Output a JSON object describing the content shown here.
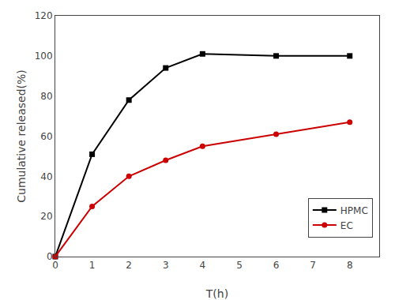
{
  "chart_data": {
    "type": "line",
    "xlabel": "T(h)",
    "ylabel": "Cumulative released(%)",
    "x": [
      0,
      1,
      2,
      3,
      4,
      6,
      8
    ],
    "series": [
      {
        "name": "HPMC",
        "color": "#000000",
        "marker": "square",
        "values": [
          0,
          51,
          78,
          94,
          101,
          100,
          100
        ]
      },
      {
        "name": "EC",
        "color": "#cc0000",
        "marker": "circle",
        "values": [
          0,
          25,
          40,
          48,
          55,
          61,
          67
        ]
      }
    ],
    "xlim": [
      0,
      8.8
    ],
    "ylim": [
      0,
      120
    ],
    "xticks": [
      0,
      1,
      2,
      3,
      4,
      5,
      6,
      7,
      8
    ],
    "yticks": [
      0,
      20,
      40,
      60,
      80,
      100,
      120
    ],
    "grid": false,
    "legend": "lower right"
  }
}
